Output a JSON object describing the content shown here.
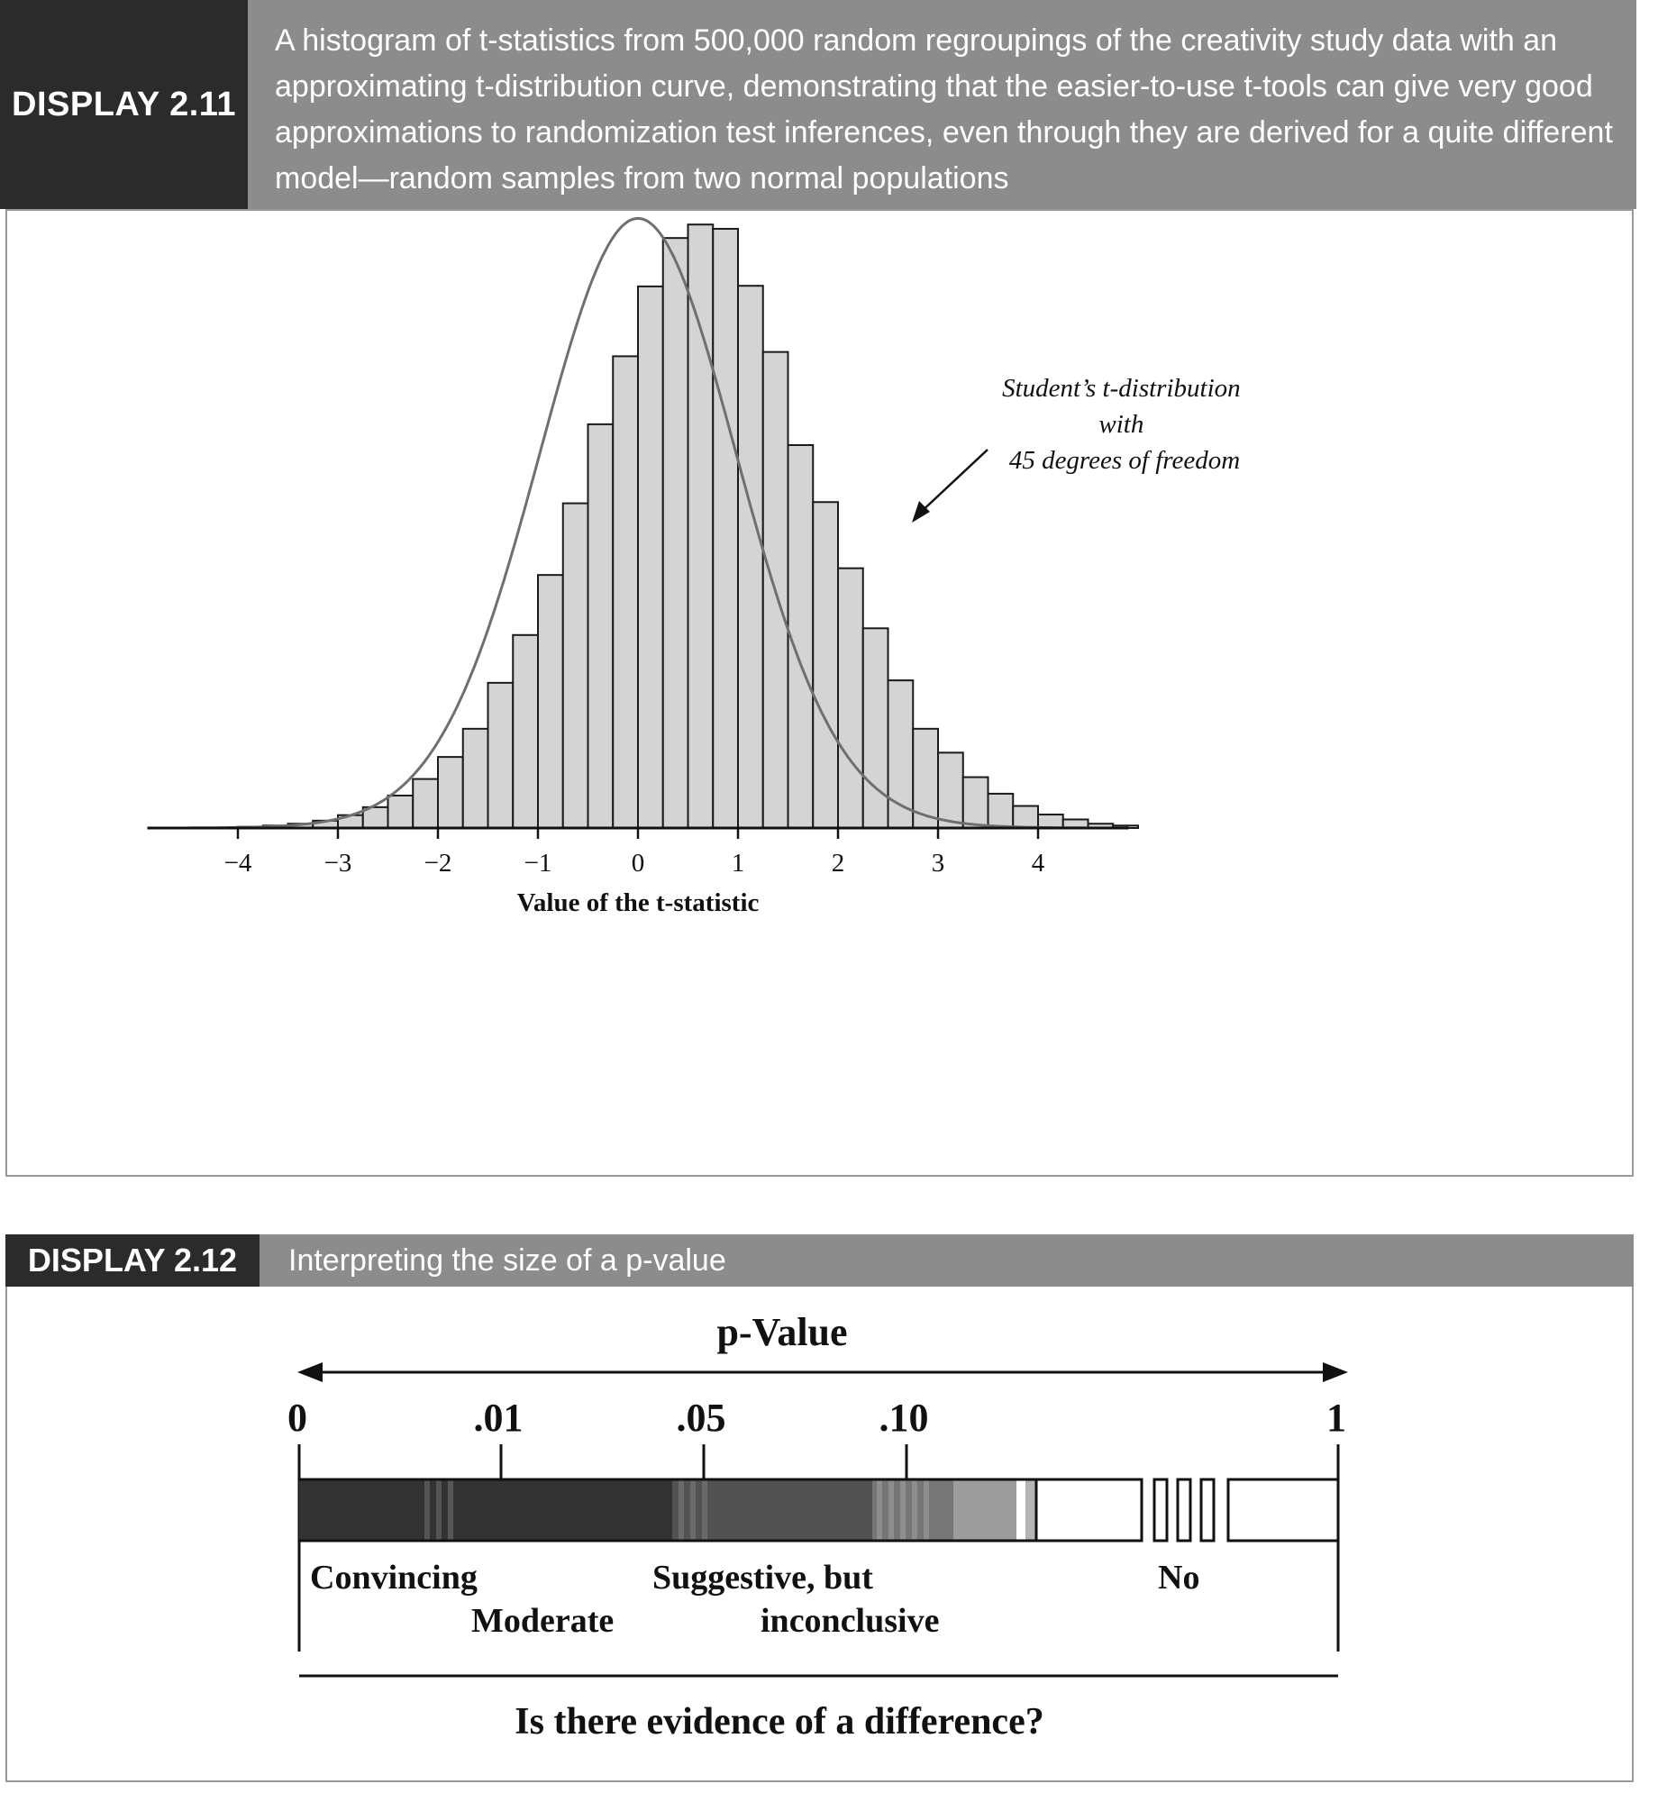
{
  "display_211": {
    "tag": "DISPLAY 2.11",
    "caption": "A histogram of t-statistics from 500,000 random regroupings of the creativity study data with an approximating t-distribution curve, demonstrating that the easier-to-use t-tools can give very good approximations to randomization test inferences, even through they are derived for a quite different model—random samples from two normal populations",
    "annotation_lines": [
      "Student’s t-distribution",
      "with",
      "45 degrees of freedom"
    ]
  },
  "display_212": {
    "tag": "DISPLAY 2.12",
    "caption": "Interpreting the size of a p-value",
    "scale_title": "p-Value",
    "scale_labels": [
      "0",
      ".01",
      ".05",
      ".10",
      "1"
    ],
    "zone_labels": {
      "convincing": "Convincing",
      "moderate": "Moderate",
      "suggestive_1": "Suggestive, but",
      "suggestive_2": "inconclusive",
      "no": "No"
    },
    "question": "Is there evidence of a difference?"
  },
  "chart_data": {
    "type": "bar",
    "title": "",
    "xlabel": "Value of the t-statistic",
    "ylabel": "",
    "xlim": [
      -4.5,
      4.5
    ],
    "x_ticks": [
      -4,
      -3,
      -2,
      -1,
      0,
      1,
      2,
      3,
      4
    ],
    "x_tick_labels": [
      "−4",
      "−3",
      "−2",
      "−1",
      "0",
      "1",
      "2",
      "3",
      "4"
    ],
    "bin_width": 0.25,
    "bins_start": -4.0,
    "relative_heights": [
      0.002,
      0.004,
      0.007,
      0.012,
      0.021,
      0.034,
      0.053,
      0.08,
      0.116,
      0.162,
      0.237,
      0.315,
      0.413,
      0.53,
      0.659,
      0.77,
      0.884,
      0.963,
      0.985,
      0.978,
      0.885,
      0.777,
      0.625,
      0.532,
      0.424,
      0.326,
      0.241,
      0.162,
      0.123,
      0.083,
      0.056,
      0.036,
      0.022,
      0.014,
      0.007,
      0.004
    ],
    "curve": {
      "name": "Student’s t-distribution with 45 degrees of freedom",
      "df": 45
    },
    "grid": false,
    "legend": "annotation upper-right"
  }
}
